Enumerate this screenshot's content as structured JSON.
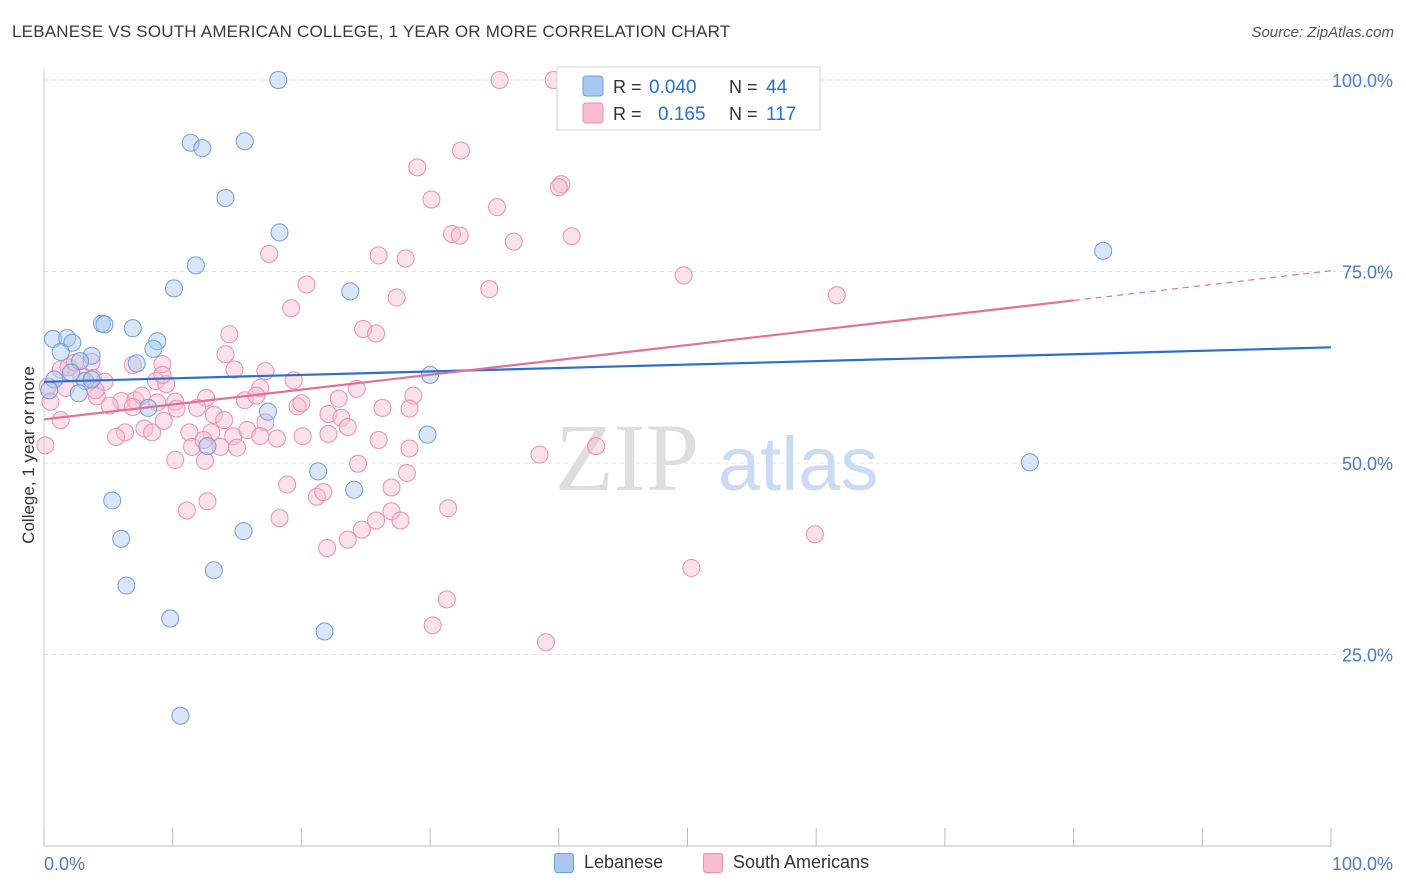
{
  "header": {
    "title": "LEBANESE VS SOUTH AMERICAN COLLEGE, 1 YEAR OR MORE CORRELATION CHART",
    "source": "Source: ZipAtlas.com"
  },
  "watermark": {
    "zip": "ZIP",
    "atlas": "atlas"
  },
  "legend_top": [
    {
      "r_label": "R =",
      "r_value": "0.040",
      "n_label": "N =",
      "n_value": "44"
    },
    {
      "r_label": "R =",
      "r_value": "0.165",
      "n_label": "N =",
      "n_value": "117"
    }
  ],
  "legend_bottom": [
    {
      "label": "Lebanese"
    },
    {
      "label": "South Americans"
    }
  ],
  "colors": {
    "lebanese_fill": "#a9c8f0",
    "lebanese_stroke": "#6f9fd8",
    "lebanese_line": "#2b6fcf",
    "south_fill": "#f7bcd0",
    "south_stroke": "#ec8fb0",
    "south_line": "#e2709a",
    "axis_label": "#4a7cc9",
    "grid": "#e2e2e2"
  },
  "chart_data": {
    "type": "scatter",
    "title": "LEBANESE VS SOUTH AMERICAN COLLEGE, 1 YEAR OR MORE CORRELATION CHART",
    "xlabel": "",
    "ylabel": "College, 1 year or more",
    "xlim": [
      0,
      100
    ],
    "ylim": [
      0,
      100
    ],
    "x_tick_labels": [
      "0.0%",
      "100.0%"
    ],
    "y_tick_labels": [
      "25.0%",
      "50.0%",
      "75.0%",
      "100.0%"
    ],
    "y_ticks": [
      25,
      50,
      75,
      100
    ],
    "grid": true,
    "series": [
      {
        "name": "Lebanese",
        "r": 0.04,
        "n": 44,
        "trend": {
          "x": [
            0,
            100
          ],
          "y": [
            60.6,
            65.1
          ]
        },
        "points": [
          [
            18.2,
            100
          ],
          [
            11.4,
            91.8
          ],
          [
            12.3,
            91.1
          ],
          [
            15.6,
            92.0
          ],
          [
            14.1,
            84.6
          ],
          [
            18.3,
            80.1
          ],
          [
            11.8,
            75.8
          ],
          [
            10.1,
            72.8
          ],
          [
            23.8,
            72.4
          ],
          [
            82.3,
            77.7
          ],
          [
            0.7,
            66.2
          ],
          [
            1.8,
            66.3
          ],
          [
            2.2,
            65.7
          ],
          [
            4.5,
            68.2
          ],
          [
            4.7,
            68.1
          ],
          [
            6.9,
            67.6
          ],
          [
            8.8,
            65.9
          ],
          [
            1.3,
            64.5
          ],
          [
            3.7,
            64.0
          ],
          [
            8.5,
            64.9
          ],
          [
            7.2,
            63.0
          ],
          [
            2.8,
            63.3
          ],
          [
            0.8,
            60.9
          ],
          [
            3.2,
            60.7
          ],
          [
            2.7,
            59.1
          ],
          [
            3.7,
            60.9
          ],
          [
            8.1,
            57.2
          ],
          [
            30.0,
            61.5
          ],
          [
            17.4,
            56.7
          ],
          [
            12.7,
            52.2
          ],
          [
            29.8,
            53.7
          ],
          [
            21.3,
            48.9
          ],
          [
            24.1,
            46.5
          ],
          [
            5.3,
            45.1
          ],
          [
            76.6,
            50.1
          ],
          [
            6.0,
            40.1
          ],
          [
            15.5,
            41.1
          ],
          [
            6.4,
            34.0
          ],
          [
            13.2,
            36.0
          ],
          [
            9.8,
            29.7
          ],
          [
            21.8,
            28.0
          ],
          [
            10.6,
            17.0
          ],
          [
            0.4,
            59.5
          ],
          [
            2.1,
            61.8
          ]
        ]
      },
      {
        "name": "South Americans",
        "r": 0.165,
        "n": 117,
        "trend": {
          "x": [
            0,
            100
          ],
          "y": [
            55.7,
            75.1
          ]
        },
        "trend_solid_to_x": 80,
        "points": [
          [
            35.4,
            100
          ],
          [
            39.6,
            100
          ],
          [
            32.4,
            90.8
          ],
          [
            29.0,
            88.6
          ],
          [
            40.2,
            86.4
          ],
          [
            40.0,
            86.0
          ],
          [
            30.1,
            84.4
          ],
          [
            35.2,
            83.4
          ],
          [
            31.7,
            79.9
          ],
          [
            32.3,
            79.7
          ],
          [
            41.0,
            79.6
          ],
          [
            36.5,
            78.9
          ],
          [
            17.5,
            77.3
          ],
          [
            26.0,
            77.1
          ],
          [
            28.1,
            76.7
          ],
          [
            49.7,
            74.5
          ],
          [
            20.4,
            73.3
          ],
          [
            34.6,
            72.7
          ],
          [
            27.4,
            71.6
          ],
          [
            61.6,
            71.9
          ],
          [
            19.2,
            70.2
          ],
          [
            24.8,
            67.5
          ],
          [
            25.8,
            66.9
          ],
          [
            14.4,
            66.8
          ],
          [
            1.3,
            62.2
          ],
          [
            1.9,
            62.5
          ],
          [
            2.4,
            63.1
          ],
          [
            3.7,
            63.2
          ],
          [
            6.9,
            62.8
          ],
          [
            9.2,
            62.9
          ],
          [
            14.1,
            64.2
          ],
          [
            14.8,
            62.2
          ],
          [
            17.2,
            62.0
          ],
          [
            2.9,
            61.3
          ],
          [
            3.8,
            61.1
          ],
          [
            4.7,
            60.6
          ],
          [
            8.7,
            60.7
          ],
          [
            9.5,
            60.3
          ],
          [
            19.4,
            60.8
          ],
          [
            0.3,
            60.0
          ],
          [
            0.5,
            58.0
          ],
          [
            4.1,
            58.7
          ],
          [
            6.0,
            58.1
          ],
          [
            7.1,
            58.2
          ],
          [
            7.6,
            58.8
          ],
          [
            10.2,
            58.0
          ],
          [
            12.6,
            58.5
          ],
          [
            15.6,
            58.2
          ],
          [
            16.8,
            59.8
          ],
          [
            22.9,
            58.4
          ],
          [
            24.3,
            59.7
          ],
          [
            28.7,
            58.8
          ],
          [
            5.1,
            57.5
          ],
          [
            6.9,
            57.3
          ],
          [
            10.3,
            57.1
          ],
          [
            11.9,
            57.2
          ],
          [
            13.2,
            56.3
          ],
          [
            19.7,
            57.4
          ],
          [
            22.1,
            56.4
          ],
          [
            26.3,
            57.2
          ],
          [
            28.4,
            57.1
          ],
          [
            14.0,
            55.6
          ],
          [
            17.2,
            55.3
          ],
          [
            23.1,
            55.9
          ],
          [
            1.3,
            55.6
          ],
          [
            6.3,
            54.0
          ],
          [
            7.8,
            54.5
          ],
          [
            8.4,
            54.0
          ],
          [
            11.3,
            54.0
          ],
          [
            13.0,
            54.0
          ],
          [
            14.7,
            53.5
          ],
          [
            15.8,
            54.3
          ],
          [
            16.8,
            53.5
          ],
          [
            20.1,
            53.5
          ],
          [
            22.1,
            53.8
          ],
          [
            0.1,
            52.3
          ],
          [
            11.5,
            52.1
          ],
          [
            13.7,
            52.1
          ],
          [
            15.0,
            52.0
          ],
          [
            28.4,
            51.9
          ],
          [
            38.5,
            51.1
          ],
          [
            42.9,
            52.2
          ],
          [
            10.2,
            50.4
          ],
          [
            12.5,
            50.3
          ],
          [
            24.4,
            49.9
          ],
          [
            28.2,
            48.7
          ],
          [
            18.9,
            47.2
          ],
          [
            27.0,
            46.8
          ],
          [
            21.2,
            45.6
          ],
          [
            21.7,
            46.2
          ],
          [
            12.7,
            45.0
          ],
          [
            27.0,
            43.7
          ],
          [
            11.1,
            43.8
          ],
          [
            31.4,
            44.1
          ],
          [
            18.3,
            42.8
          ],
          [
            25.8,
            42.5
          ],
          [
            27.7,
            42.5
          ],
          [
            24.7,
            41.3
          ],
          [
            23.6,
            40.0
          ],
          [
            22.0,
            38.9
          ],
          [
            59.9,
            40.7
          ],
          [
            50.3,
            36.3
          ],
          [
            31.3,
            32.2
          ],
          [
            30.2,
            28.8
          ],
          [
            39.0,
            26.6
          ],
          [
            5.6,
            53.4
          ],
          [
            9.3,
            55.5
          ],
          [
            18.1,
            53.2
          ],
          [
            26.0,
            53.0
          ],
          [
            4.0,
            59.5
          ],
          [
            16.5,
            58.8
          ],
          [
            12.4,
            53.0
          ],
          [
            9.2,
            61.5
          ],
          [
            20.0,
            57.8
          ],
          [
            1.7,
            59.8
          ],
          [
            23.6,
            54.7
          ],
          [
            8.8,
            57.9
          ]
        ]
      }
    ]
  }
}
